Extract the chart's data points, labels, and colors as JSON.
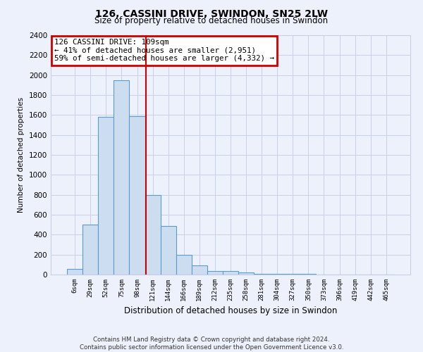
{
  "title": "126, CASSINI DRIVE, SWINDON, SN25 2LW",
  "subtitle": "Size of property relative to detached houses in Swindon",
  "xlabel": "Distribution of detached houses by size in Swindon",
  "ylabel": "Number of detached properties",
  "bar_color": "#ccddf0",
  "bar_edge_color": "#5b9bd5",
  "background_color": "#edf1fb",
  "categories": [
    "6sqm",
    "29sqm",
    "52sqm",
    "75sqm",
    "98sqm",
    "121sqm",
    "144sqm",
    "166sqm",
    "189sqm",
    "212sqm",
    "235sqm",
    "258sqm",
    "281sqm",
    "304sqm",
    "327sqm",
    "350sqm",
    "373sqm",
    "396sqm",
    "419sqm",
    "442sqm",
    "465sqm"
  ],
  "values": [
    55,
    500,
    1580,
    1950,
    1590,
    800,
    490,
    195,
    90,
    35,
    35,
    20,
    5,
    5,
    5,
    5,
    0,
    0,
    0,
    0,
    0
  ],
  "ylim": [
    0,
    2400
  ],
  "yticks": [
    0,
    200,
    400,
    600,
    800,
    1000,
    1200,
    1400,
    1600,
    1800,
    2000,
    2200,
    2400
  ],
  "annotation_text": "126 CASSINI DRIVE: 109sqm\n← 41% of detached houses are smaller (2,951)\n59% of semi-detached houses are larger (4,332) →",
  "annotation_box_color": "#ffffff",
  "annotation_box_edge": "#cc0000",
  "property_line_x": 4.55,
  "property_line_color": "#cc0000",
  "footer_line1": "Contains HM Land Registry data © Crown copyright and database right 2024.",
  "footer_line2": "Contains public sector information licensed under the Open Government Licence v3.0.",
  "grid_color": "#c8d0e8"
}
